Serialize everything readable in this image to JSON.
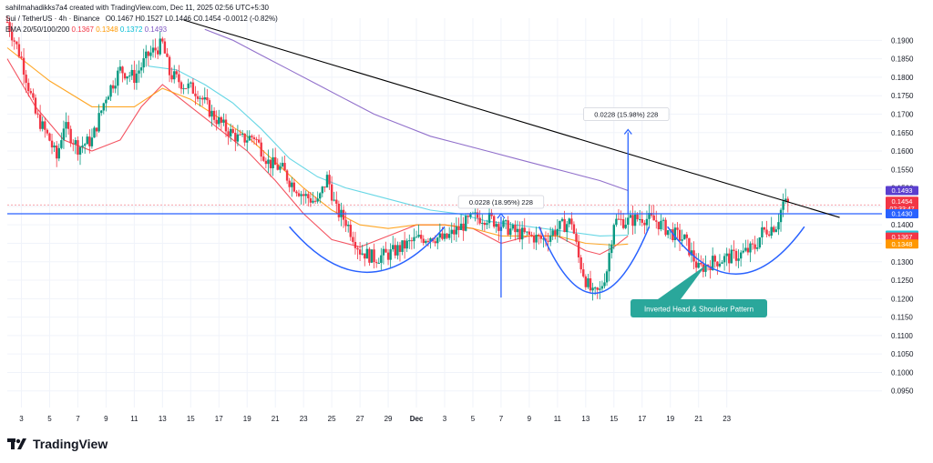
{
  "header": {
    "attribution": "sahilmahadikks7a4 created with TradingView.com, Dec 11, 2025 02:56 UTC+5:30",
    "symbol": "Sui / TetherUS · 4h · Binance",
    "ohlc": "O0.1467 H0.1527 L0.1446 C0.1454 -0.0012 (-0.82%)",
    "ema_label": "EMA 20/50/100/200",
    "ema_values": [
      "0.1367",
      "0.1348",
      "0.1372",
      "0.1493"
    ]
  },
  "brand": {
    "name": "TradingView"
  },
  "colors": {
    "up": "#089981",
    "down": "#f23645",
    "ema20": "#f23645",
    "ema50": "#ff9800",
    "ema100": "#4dd0e1",
    "ema200": "#7e57c2",
    "neckline": "#2962ff",
    "trendline": "#000000",
    "pattern_label_bg": "#2aa79b"
  },
  "chart_data": {
    "type": "candlestick",
    "y_axis": {
      "ticks": [
        "0.1900",
        "0.1850",
        "0.1800",
        "0.1750",
        "0.1700",
        "0.1650",
        "0.1600",
        "0.1550",
        "0.1500",
        "0.1450",
        "0.1400",
        "0.1350",
        "0.1300",
        "0.1250",
        "0.1200",
        "0.1150",
        "0.1100",
        "0.1050",
        "0.1000",
        "0.0950"
      ],
      "range": [
        0.0905,
        0.196
      ]
    },
    "x_axis": {
      "ticks": [
        "3",
        "5",
        "7",
        "9",
        "11",
        "13",
        "15",
        "17",
        "19",
        "21",
        "23",
        "25",
        "27",
        "29",
        "Dec",
        "3",
        "5",
        "7",
        "9",
        "11",
        "13",
        "15",
        "17",
        "19",
        "21",
        "23"
      ],
      "range_days": [
        0,
        62
      ]
    },
    "price_labels": [
      {
        "text": "0.1493",
        "value": 0.1493,
        "color": "#5b3fcf"
      },
      {
        "text": "0.1454",
        "value": 0.1454,
        "color": "#f23645",
        "sub": "02:33:47"
      },
      {
        "text": "0.1430",
        "value": 0.143,
        "color": "#2962ff"
      },
      {
        "text": "0.1372",
        "value": 0.1372,
        "color": "#26c6da"
      },
      {
        "text": "0.1367",
        "value": 0.1367,
        "color": "#f23645"
      },
      {
        "text": "0.1348",
        "value": 0.1348,
        "color": "#ff9800"
      }
    ],
    "support_resistance": 0.143,
    "current_price": 0.1454,
    "trendline": {
      "start": {
        "day": 12.5,
        "price": 0.1955
      },
      "end": {
        "day": 59,
        "price": 0.142
      }
    },
    "measure_boxes": [
      {
        "text": "0.0228 (18.95%) 228",
        "day": 35.0,
        "from": 0.1203,
        "to": 0.143
      },
      {
        "text": "0.0228 (15.98%) 228",
        "day": 44.0,
        "from": 0.143,
        "to": 0.1658
      }
    ],
    "pattern_label": "Inverted Head & Shoulder Pattern",
    "emas": [
      {
        "name": "EMA 20",
        "points": [
          [
            0,
            0.185
          ],
          [
            2,
            0.172
          ],
          [
            4,
            0.163
          ],
          [
            6,
            0.16
          ],
          [
            8,
            0.163
          ],
          [
            9.5,
            0.172
          ],
          [
            11,
            0.178
          ],
          [
            13,
            0.172
          ],
          [
            15,
            0.166
          ],
          [
            17,
            0.16
          ],
          [
            19,
            0.152
          ],
          [
            21,
            0.143
          ],
          [
            23,
            0.136
          ],
          [
            25,
            0.134
          ],
          [
            27,
            0.137
          ],
          [
            29,
            0.14
          ],
          [
            31,
            0.14
          ],
          [
            33,
            0.139
          ],
          [
            35,
            0.135
          ],
          [
            37,
            0.137
          ],
          [
            39,
            0.137
          ],
          [
            41,
            0.133
          ],
          [
            42,
            0.132
          ],
          [
            43,
            0.134
          ],
          [
            44,
            0.137
          ]
        ]
      },
      {
        "name": "EMA 50",
        "points": [
          [
            0,
            0.188
          ],
          [
            3,
            0.179
          ],
          [
            6,
            0.172
          ],
          [
            9,
            0.172
          ],
          [
            11,
            0.177
          ],
          [
            13,
            0.174
          ],
          [
            15,
            0.169
          ],
          [
            17,
            0.164
          ],
          [
            19,
            0.157
          ],
          [
            21,
            0.15
          ],
          [
            23,
            0.144
          ],
          [
            25,
            0.14
          ],
          [
            27,
            0.139
          ],
          [
            29,
            0.14
          ],
          [
            31,
            0.14
          ],
          [
            33,
            0.139
          ],
          [
            35,
            0.137
          ],
          [
            37,
            0.137
          ],
          [
            39,
            0.137
          ],
          [
            41,
            0.135
          ],
          [
            43,
            0.1345
          ],
          [
            44,
            0.1348
          ]
        ]
      },
      {
        "name": "EMA 100",
        "points": [
          [
            10,
            0.183
          ],
          [
            12,
            0.182
          ],
          [
            14,
            0.178
          ],
          [
            16,
            0.173
          ],
          [
            18,
            0.166
          ],
          [
            20,
            0.158
          ],
          [
            22,
            0.153
          ],
          [
            24,
            0.15
          ],
          [
            26,
            0.148
          ],
          [
            28,
            0.146
          ],
          [
            30,
            0.144
          ],
          [
            32,
            0.143
          ],
          [
            34,
            0.141
          ],
          [
            36,
            0.14
          ],
          [
            38,
            0.139
          ],
          [
            40,
            0.138
          ],
          [
            42,
            0.137
          ],
          [
            44,
            0.1372
          ]
        ]
      },
      {
        "name": "EMA 200",
        "points": [
          [
            14,
            0.193
          ],
          [
            16,
            0.19
          ],
          [
            18,
            0.186
          ],
          [
            20,
            0.182
          ],
          [
            22,
            0.178
          ],
          [
            24,
            0.174
          ],
          [
            26,
            0.17
          ],
          [
            28,
            0.167
          ],
          [
            30,
            0.164
          ],
          [
            32,
            0.162
          ],
          [
            34,
            0.16
          ],
          [
            36,
            0.158
          ],
          [
            38,
            0.156
          ],
          [
            40,
            0.154
          ],
          [
            42,
            0.152
          ],
          [
            44,
            0.1493
          ]
        ]
      }
    ],
    "series_path": [
      [
        0,
        0.195
      ],
      [
        1,
        0.185
      ],
      [
        2,
        0.17
      ],
      [
        3,
        0.163
      ],
      [
        3.5,
        0.158
      ],
      [
        4,
        0.167
      ],
      [
        5,
        0.161
      ],
      [
        6,
        0.163
      ],
      [
        7,
        0.175
      ],
      [
        8,
        0.182
      ],
      [
        9,
        0.18
      ],
      [
        10,
        0.186
      ],
      [
        11,
        0.189
      ],
      [
        11.5,
        0.181
      ],
      [
        12.5,
        0.178
      ],
      [
        13.5,
        0.176
      ],
      [
        14.5,
        0.17
      ],
      [
        15.5,
        0.166
      ],
      [
        16.5,
        0.163
      ],
      [
        17.5,
        0.164
      ],
      [
        18.5,
        0.157
      ],
      [
        19.5,
        0.155
      ],
      [
        20,
        0.152
      ],
      [
        21,
        0.148
      ],
      [
        22,
        0.146
      ],
      [
        22.7,
        0.153
      ],
      [
        23.3,
        0.144
      ],
      [
        24,
        0.141
      ],
      [
        25,
        0.133
      ],
      [
        26,
        0.131
      ],
      [
        27,
        0.132
      ],
      [
        28,
        0.134
      ],
      [
        29,
        0.136
      ],
      [
        30,
        0.137
      ],
      [
        31,
        0.136
      ],
      [
        32,
        0.139
      ],
      [
        33,
        0.142
      ],
      [
        34,
        0.142
      ],
      [
        35,
        0.14
      ],
      [
        36,
        0.138
      ],
      [
        37,
        0.137
      ],
      [
        38,
        0.136
      ],
      [
        39,
        0.139
      ],
      [
        40,
        0.141
      ],
      [
        40.5,
        0.131
      ],
      [
        41,
        0.125
      ],
      [
        41.5,
        0.121
      ],
      [
        42,
        0.122
      ],
      [
        42.5,
        0.128
      ],
      [
        43,
        0.141
      ],
      [
        44,
        0.141
      ],
      [
        45,
        0.142
      ],
      [
        46,
        0.141
      ],
      [
        47,
        0.138
      ],
      [
        48,
        0.136
      ],
      [
        48.5,
        0.132
      ],
      [
        49,
        0.128
      ],
      [
        50,
        0.13
      ],
      [
        51,
        0.131
      ],
      [
        52,
        0.132
      ],
      [
        53,
        0.134
      ],
      [
        53.5,
        0.138
      ],
      [
        54,
        0.139
      ],
      [
        54.5,
        0.14
      ],
      [
        55,
        0.146
      ],
      [
        55.4,
        0.1454
      ]
    ]
  }
}
